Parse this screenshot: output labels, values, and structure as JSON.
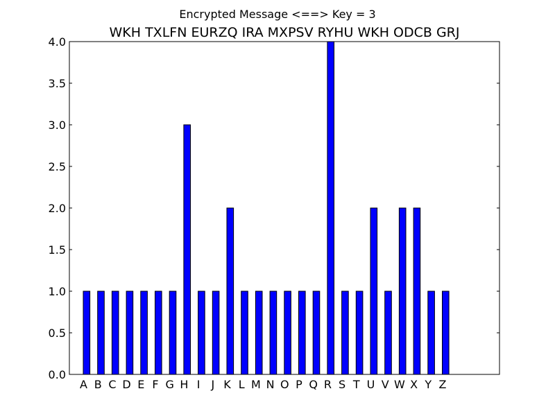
{
  "chart_data": {
    "type": "bar",
    "suptitle": "Encrypted Message <==> Key = 3",
    "title": "WKH TXLFN EURZQ IRA MXPSV RYHU WKH ODCB GRJ",
    "xlabel": "",
    "ylabel": "",
    "ylim": [
      0,
      4
    ],
    "yticks": [
      "0.0",
      "0.5",
      "1.0",
      "1.5",
      "2.0",
      "2.5",
      "3.0",
      "3.5",
      "4.0"
    ],
    "categories": [
      "A",
      "B",
      "C",
      "D",
      "E",
      "F",
      "G",
      "H",
      "I",
      "J",
      "K",
      "L",
      "M",
      "N",
      "O",
      "P",
      "Q",
      "R",
      "S",
      "T",
      "U",
      "V",
      "W",
      "X",
      "Y",
      "Z"
    ],
    "values": [
      1,
      1,
      1,
      1,
      1,
      1,
      1,
      3,
      1,
      1,
      2,
      1,
      1,
      1,
      1,
      1,
      1,
      4,
      1,
      1,
      2,
      1,
      2,
      2,
      1,
      1
    ],
    "bar_color": "#0000ff",
    "edge_color": "#000000",
    "grid": false,
    "legend": "none"
  }
}
